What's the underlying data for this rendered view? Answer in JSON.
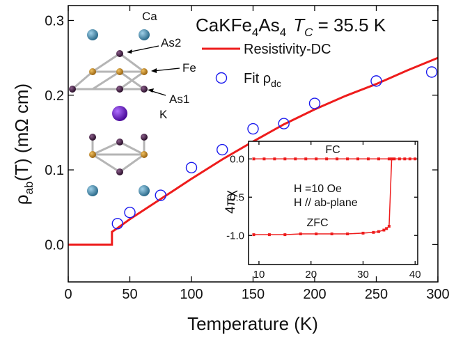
{
  "chart_data": [
    {
      "type": "line",
      "title_parts": [
        "CaKFe",
        "4",
        "As",
        "4",
        "T",
        "C",
        " = 35.5 K"
      ],
      "x_label": "Temperature (K)",
      "y_label_parts": [
        "ρ",
        "ab",
        "(T) (mΩ cm)"
      ],
      "xlim": [
        0,
        300
      ],
      "xticks": [
        0,
        50,
        100,
        150,
        200,
        250,
        300
      ],
      "ylim": [
        -0.05,
        0.32
      ],
      "yticks": [
        {
          "value": 0,
          "label": "0.0"
        },
        0.1,
        0.2,
        0.3
      ],
      "annotations": [
        "Ca",
        "As2",
        "Fe",
        "As1",
        "K"
      ],
      "series": [
        {
          "name": "Resistivity-DC",
          "color": "#ee1c1c",
          "marker": "line",
          "x": [
            0,
            35.5,
            35.5,
            40,
            50,
            75,
            100,
            125,
            150,
            175,
            200,
            225,
            250,
            275,
            300
          ],
          "values": [
            0,
            0,
            0.017,
            0.022,
            0.034,
            0.061,
            0.088,
            0.114,
            0.138,
            0.161,
            0.181,
            0.199,
            0.215,
            0.233,
            0.25
          ]
        },
        {
          "name": "Fit ρ",
          "name_sub": "dc",
          "color": "#1a1aee",
          "marker": "circle",
          "x": [
            40,
            50,
            75,
            100,
            125,
            150,
            175,
            200,
            250,
            295
          ],
          "values": [
            0.028,
            0.043,
            0.066,
            0.103,
            0.127,
            0.155,
            0.162,
            0.189,
            0.219,
            0.231
          ]
        }
      ]
    },
    {
      "type": "line",
      "y_label": "4πχ",
      "xlim": [
        8,
        40.5
      ],
      "xticks": [
        10,
        20,
        30,
        40
      ],
      "ylim": [
        -1.38,
        0.23
      ],
      "yticks": [
        {
          "value": 0,
          "label": "0.0"
        },
        -0.5,
        {
          "value": -1,
          "label": "-1.0"
        }
      ],
      "annotations": [
        "H =10 Oe",
        "H // ab-plane"
      ],
      "series": [
        {
          "name": "FC",
          "color": "#ee1c1c",
          "marker": "square-line",
          "x": [
            9,
            11,
            13,
            15,
            17,
            19,
            21,
            23,
            25,
            27,
            29,
            31,
            33,
            35,
            37,
            39
          ],
          "values": [
            0,
            0,
            0,
            0,
            0,
            0,
            0,
            0,
            0,
            0,
            0,
            0,
            0,
            0,
            0,
            0
          ]
        },
        {
          "name": "ZFC",
          "color": "#ee1c1c",
          "marker": "square-line",
          "x": [
            9,
            12,
            15,
            18,
            21,
            24,
            27,
            30,
            32,
            33,
            34,
            34.5,
            35,
            35.5,
            36,
            38,
            40
          ],
          "values": [
            -0.99,
            -0.99,
            -0.99,
            -0.98,
            -0.98,
            -0.98,
            -0.98,
            -0.97,
            -0.96,
            -0.95,
            -0.93,
            -0.91,
            -0.88,
            0,
            0,
            0,
            0
          ]
        }
      ]
    }
  ]
}
